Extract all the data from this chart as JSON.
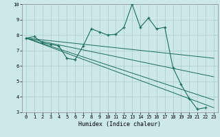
{
  "xlabel": "Humidex (Indice chaleur)",
  "background_color": "#cce8e8",
  "line_color": "#1a6b5e",
  "x_values": [
    0,
    1,
    2,
    3,
    4,
    5,
    6,
    7,
    8,
    9,
    10,
    11,
    12,
    13,
    14,
    15,
    16,
    17,
    18,
    19,
    20,
    21,
    22,
    23
  ],
  "curve1": [
    7.8,
    7.9,
    7.5,
    7.4,
    7.3,
    6.5,
    6.4,
    7.3,
    8.4,
    8.2,
    8.0,
    8.05,
    8.5,
    10.0,
    8.5,
    9.1,
    8.4,
    8.5,
    5.9,
    4.8,
    3.9,
    3.2,
    3.3,
    null
  ],
  "straight_lines": [
    {
      "x0": 0,
      "y0": 7.8,
      "x1": 23,
      "y1": 3.3
    },
    {
      "x0": 0,
      "y0": 7.8,
      "x1": 23,
      "y1": 3.8
    },
    {
      "x0": 0,
      "y0": 7.8,
      "x1": 23,
      "y1": 5.3
    },
    {
      "x0": 0,
      "y0": 7.8,
      "x1": 23,
      "y1": 6.5
    }
  ],
  "ylim": [
    3,
    10
  ],
  "xlim": [
    -0.5,
    23.5
  ],
  "yticks": [
    3,
    4,
    5,
    6,
    7,
    8,
    9,
    10
  ],
  "xticks": [
    0,
    1,
    2,
    3,
    4,
    5,
    6,
    7,
    8,
    9,
    10,
    11,
    12,
    13,
    14,
    15,
    16,
    17,
    18,
    19,
    20,
    21,
    22,
    23
  ],
  "xlabel_fontsize": 6.0,
  "tick_fontsize": 5.0
}
